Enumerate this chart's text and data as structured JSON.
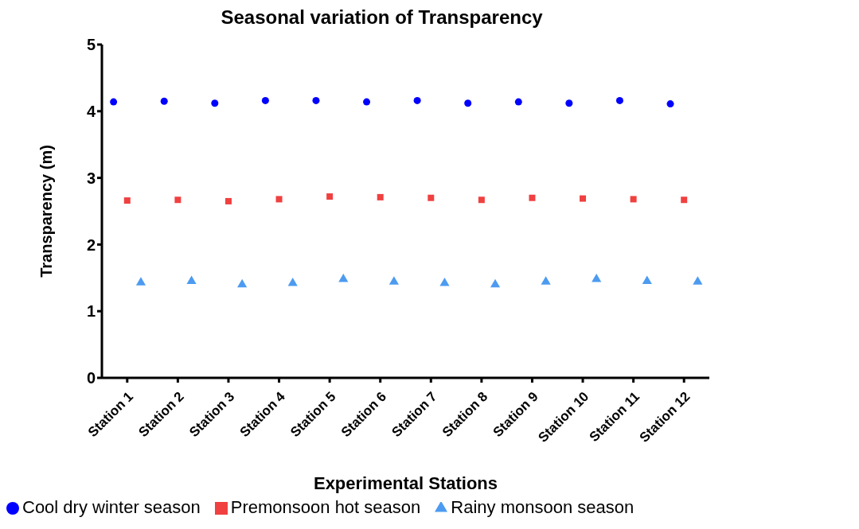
{
  "chart_data": {
    "type": "scatter",
    "title": "Seasonal variation of Transparency",
    "xlabel": "Experimental Stations",
    "ylabel": "Transparency (m)",
    "categories": [
      "Station 1",
      "Station 2",
      "Station 3",
      "Station 4",
      "Station 5",
      "Station 6",
      "Station 7",
      "Station 8",
      "Station 9",
      "Station 10",
      "Station 11",
      "Station 12"
    ],
    "ylim": [
      0,
      5
    ],
    "yticks": [
      0,
      1,
      2,
      3,
      4,
      5
    ],
    "grid": false,
    "legend": "bottom",
    "series": [
      {
        "name": "Cool dry winter season",
        "color": "#0000ff",
        "marker": "circle",
        "values": [
          4.14,
          4.15,
          4.12,
          4.16,
          4.16,
          4.14,
          4.16,
          4.12,
          4.14,
          4.12,
          4.16,
          4.11
        ]
      },
      {
        "name": "Premonsoon hot season",
        "color": "#f04040",
        "marker": "square",
        "values": [
          2.66,
          2.67,
          2.65,
          2.68,
          2.72,
          2.71,
          2.7,
          2.67,
          2.7,
          2.69,
          2.68,
          2.67
        ]
      },
      {
        "name": "Rainy monsoon season",
        "color": "#4c9bf0",
        "marker": "triangle",
        "values": [
          1.43,
          1.45,
          1.4,
          1.42,
          1.48,
          1.44,
          1.42,
          1.4,
          1.44,
          1.48,
          1.45,
          1.44
        ]
      }
    ]
  }
}
